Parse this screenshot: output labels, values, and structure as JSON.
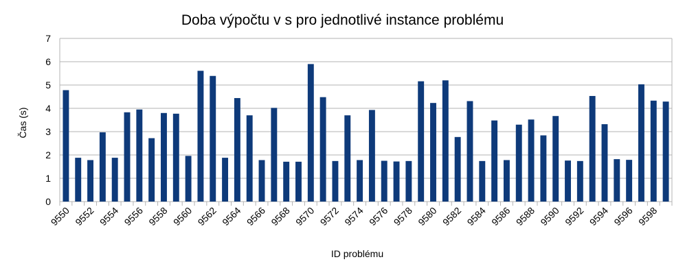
{
  "chart_data": {
    "type": "bar",
    "title": "Doba výpočtu v s pro jednotlivé instance problému",
    "xlabel": "ID problému",
    "ylabel": "Čas (s)",
    "ylim": [
      0,
      7
    ],
    "yticks": [
      0,
      1,
      2,
      3,
      4,
      5,
      6,
      7
    ],
    "grid": true,
    "legend": "none",
    "bar_color": "#0e3a7a",
    "categories": [
      "9550",
      "9551",
      "9552",
      "9553",
      "9554",
      "9555",
      "9556",
      "9557",
      "9558",
      "9559",
      "9560",
      "9561",
      "9562",
      "9563",
      "9564",
      "9565",
      "9566",
      "9567",
      "9568",
      "9569",
      "9570",
      "9571",
      "9572",
      "9573",
      "9574",
      "9575",
      "9576",
      "9577",
      "9578",
      "9579",
      "9580",
      "9581",
      "9582",
      "9583",
      "9584",
      "9585",
      "9586",
      "9587",
      "9588",
      "9589",
      "9590",
      "9591",
      "9592",
      "9593",
      "9594",
      "9595",
      "9596",
      "9597",
      "9598",
      "9599"
    ],
    "x_tick_labels": [
      "9550",
      "9552",
      "9554",
      "9556",
      "9558",
      "9560",
      "9562",
      "9564",
      "9566",
      "9568",
      "9570",
      "9572",
      "9574",
      "9576",
      "9578",
      "9580",
      "9582",
      "9584",
      "9586",
      "9588",
      "9590",
      "9592",
      "9594",
      "9596",
      "9598"
    ],
    "values": [
      4.78,
      1.88,
      1.78,
      2.97,
      1.88,
      3.83,
      3.95,
      2.72,
      3.8,
      3.77,
      1.96,
      5.61,
      5.39,
      1.88,
      4.44,
      3.7,
      1.78,
      4.02,
      1.71,
      1.71,
      5.9,
      4.48,
      1.74,
      3.7,
      1.78,
      3.93,
      1.75,
      1.72,
      1.74,
      5.16,
      4.23,
      5.2,
      2.77,
      4.31,
      1.74,
      3.48,
      1.78,
      3.3,
      3.52,
      2.84,
      3.67,
      1.76,
      1.74,
      4.53,
      3.32,
      1.82,
      1.79,
      5.03,
      4.33,
      4.29
    ]
  }
}
